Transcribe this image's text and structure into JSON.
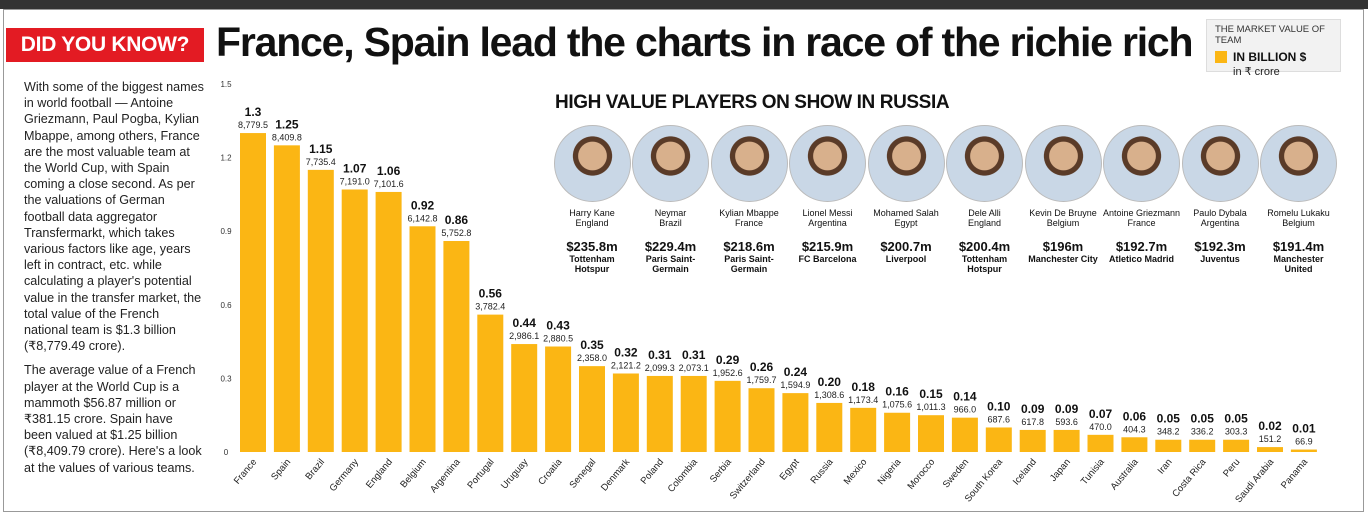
{
  "badge": "DID YOU KNOW?",
  "headline": "France, Spain lead the charts in race of the richie rich",
  "legend": {
    "title": "THE MARKET VALUE OF TEAM",
    "billion": "IN BILLION $",
    "crore": "in ₹ crore",
    "color": "#fbb614"
  },
  "story": [
    "With some of the biggest names in world football — Antoine Griezmann, Paul Pogba, Kylian Mbappe, among others, France are the most valuable team at the World Cup, with Spain coming a close second. As per the valuations of German football data aggregator Transfermarkt, which takes various factors like age, years left in contract, etc. while calculating a player's potential value in the transfer market, the total value of the French national team is $1.3 billion (₹8,779.49 crore).",
    "The average value of a French player at the World Cup is a mammoth $56.87 million or ₹381.15 crore. Spain have been valued at $1.25 billion (₹8,409.79 crore). Here's a look at the values of various teams."
  ],
  "players_title": "HIGH VALUE PLAYERS ON SHOW IN RUSSIA",
  "players": [
    {
      "name": "Harry Kane",
      "country": "England",
      "value": "$235.8m",
      "club": "Tottenham Hotspur"
    },
    {
      "name": "Neymar",
      "country": "Brazil",
      "value": "$229.4m",
      "club": "Paris Saint-Germain"
    },
    {
      "name": "Kylian Mbappe",
      "country": "France",
      "value": "$218.6m",
      "club": "Paris Saint-Germain"
    },
    {
      "name": "Lionel Messi",
      "country": "Argentina",
      "value": "$215.9m",
      "club": "FC Barcelona"
    },
    {
      "name": "Mohamed Salah",
      "country": "Egypt",
      "value": "$200.7m",
      "club": "Liverpool"
    },
    {
      "name": "Dele Alli",
      "country": "England",
      "value": "$200.4m",
      "club": "Tottenham Hotspur"
    },
    {
      "name": "Kevin De Bruyne",
      "country": "Belgium",
      "value": "$196m",
      "club": "Manchester City"
    },
    {
      "name": "Antoine Griezmann",
      "country": "France",
      "value": "$192.7m",
      "club": "Atletico Madrid"
    },
    {
      "name": "Paulo Dybala",
      "country": "Argentina",
      "value": "$192.3m",
      "club": "Juventus"
    },
    {
      "name": "Romelu Lukaku",
      "country": "Belgium",
      "value": "$191.4m",
      "club": "Manchester United"
    }
  ],
  "chart_data": {
    "type": "bar",
    "title": "",
    "xlabel": "",
    "ylabel": "",
    "ylim": [
      0,
      1.5
    ],
    "yticks": [
      "0",
      "0.3",
      "0.6",
      "0.9",
      "1.2",
      "1.5"
    ],
    "grid": false,
    "categories": [
      "France",
      "Spain",
      "Brazil",
      "Germany",
      "England",
      "Belgium",
      "Argentina",
      "Portugal",
      "Uruguay",
      "Croatia",
      "Senegal",
      "Denmark",
      "Poland",
      "Colombia",
      "Serbia",
      "Switzerland",
      "Egypt",
      "Russia",
      "Mexico",
      "Nigeria",
      "Morocco",
      "Sweden",
      "South Korea",
      "Iceland",
      "Japan",
      "Tunisia",
      "Australia",
      "Iran",
      "Costa Rica",
      "Peru",
      "Saudi Arabia",
      "Panama"
    ],
    "series": [
      {
        "name": "IN BILLION $",
        "values": [
          1.3,
          1.25,
          1.15,
          1.07,
          1.06,
          0.92,
          0.86,
          0.56,
          0.44,
          0.43,
          0.35,
          0.32,
          0.31,
          0.31,
          0.29,
          0.26,
          0.24,
          0.2,
          0.18,
          0.16,
          0.15,
          0.14,
          0.1,
          0.09,
          0.09,
          0.07,
          0.06,
          0.05,
          0.05,
          0.05,
          0.02,
          0.01
        ],
        "labels": [
          "1.3",
          "1.25",
          "1.15",
          "1.07",
          "1.06",
          "0.92",
          "0.86",
          "0.56",
          "0.44",
          "0.43",
          "0.35",
          "0.32",
          "0.31",
          "0.31",
          "0.29",
          "0.26",
          "0.24",
          "0.20",
          "0.18",
          "0.16",
          "0.15",
          "0.14",
          "0.10",
          "0.09",
          "0.09",
          "0.07",
          "0.06",
          "0.05",
          "0.05",
          "0.05",
          "0.02",
          "0.01"
        ]
      },
      {
        "name": "in ₹ crore",
        "values": [
          "8,779.5",
          "8,409.8",
          "7,735.4",
          "7,191.0",
          "7,101.6",
          "6,142.8",
          "5,752.8",
          "3,782.4",
          "2,986.1",
          "2,880.5",
          "2,358.0",
          "2,121.2",
          "2,099.3",
          "2,073.1",
          "1,952.6",
          "1,759.7",
          "1,594.9",
          "1,308.6",
          "1,173.4",
          "1,075.6",
          "1,011.3",
          "966.0",
          "687.6",
          "617.8",
          "593.6",
          "470.0",
          "404.3",
          "348.2",
          "336.2",
          "303.3",
          "151.2",
          "66.9"
        ]
      }
    ]
  }
}
